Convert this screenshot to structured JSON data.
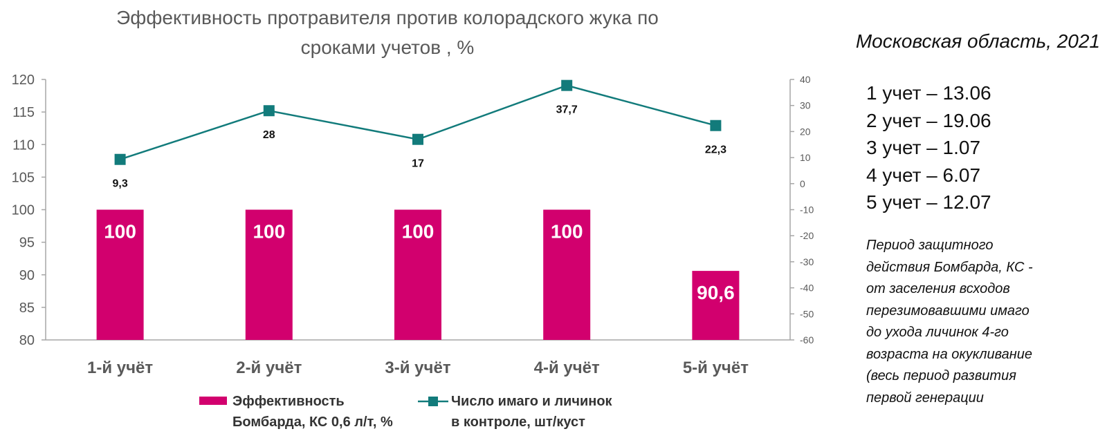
{
  "chart_data": {
    "type": "bar+line",
    "title": [
      "Эффективность протравителя против колорадского жука по",
      "сроками учетов , %"
    ],
    "categories": [
      "1-й учёт",
      "2-й учёт",
      "3-й учёт",
      "4-й учёт",
      "5-й учёт"
    ],
    "y_left": {
      "min": 80,
      "max": 120,
      "step": 5,
      "ticks": [
        "80",
        "85",
        "90",
        "95",
        "100",
        "105",
        "110",
        "115",
        "120"
      ]
    },
    "y_right": {
      "min": -60,
      "max": 40,
      "step": 10,
      "ticks": [
        "-60",
        "-50",
        "-40",
        "-30",
        "-20",
        "-10",
        "0",
        "10",
        "20",
        "30",
        "40"
      ]
    },
    "series": [
      {
        "name_lines": [
          "Эффективность",
          "Бомбарда, КС 0,6 л/т, %"
        ],
        "kind": "bar",
        "axis": "left",
        "values": [
          100,
          100,
          100,
          100,
          90.6
        ],
        "labels": [
          "100",
          "100",
          "100",
          "100",
          "90,6"
        ],
        "color": "#d2006e"
      },
      {
        "name_lines": [
          "Число имаго и личинок",
          "в контроле, шт/куст"
        ],
        "kind": "line",
        "axis": "right",
        "values": [
          9.3,
          28,
          17,
          37.7,
          22.3
        ],
        "labels": [
          "9,3",
          "28",
          "17",
          "37,7",
          "22,3"
        ],
        "color": "#127b7b"
      }
    ],
    "grid": false
  },
  "sidebar": {
    "region": "Московская область, 2021",
    "dates": [
      "1 учет – 13.06",
      "2 учет – 19.06",
      "3 учет – 1.07",
      "4 учет – 6.07",
      "5 учет – 12.07"
    ],
    "note": [
      "Период защитного",
      "действия Бомбарда, КС -",
      "от заселения всходов",
      "перезимовавшими имаго",
      "до ухода личинок 4-го",
      "возраста на окукливание",
      "(весь период развития",
      "первой генерации"
    ]
  }
}
